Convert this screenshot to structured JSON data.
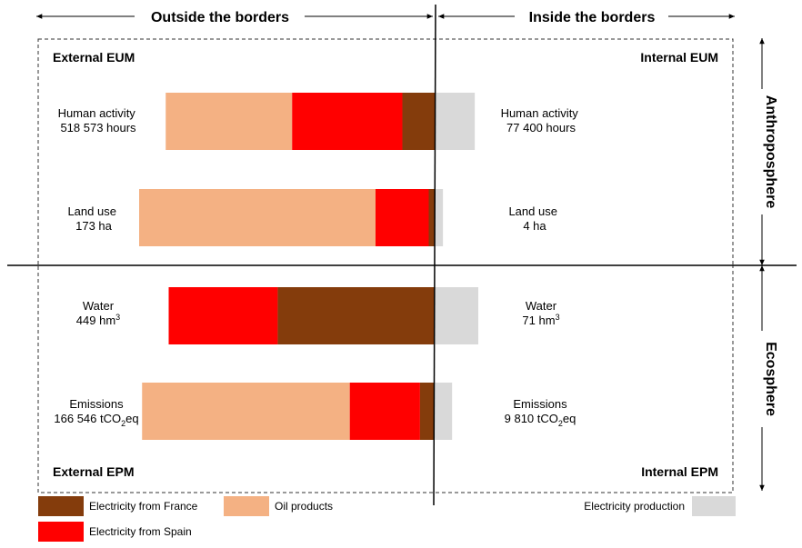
{
  "headers": {
    "outside": "Outside the borders",
    "inside": "Inside the borders",
    "anthroposphere": "Anthroposphere",
    "ecosphere": "Ecosphere"
  },
  "corners": {
    "external_eum": "External EUM",
    "internal_eum": "Internal EUM",
    "external_epm": "External EPM",
    "internal_epm": "Internal EPM"
  },
  "colors": {
    "oil": "#F4B183",
    "spain": "#FF0000",
    "france": "#843C0C",
    "production": "#D9D9D9"
  },
  "rows": [
    {
      "key": "human",
      "left_label": [
        "Human activity",
        "518 573 hours"
      ],
      "right_label": [
        "Human activity",
        "77 400 hours"
      ],
      "external": {
        "oil": 0.47,
        "spain": 0.41,
        "france": 0.13
      },
      "external_total": 518573,
      "internal_total": 77400
    },
    {
      "key": "land",
      "left_label": [
        "Land use",
        "173 ha"
      ],
      "right_label": [
        "Land use",
        "4 ha"
      ],
      "external": {
        "oil": 0.8,
        "spain": 0.18,
        "france": 0.02
      },
      "external_total": 173,
      "internal_total": 4
    },
    {
      "key": "water",
      "left_label": [
        "Water",
        "449 hm"
      ],
      "left_sup": "3",
      "right_label": [
        "Water",
        "71 hm"
      ],
      "right_sup": "3",
      "external": {
        "oil": 0.0,
        "spain": 0.41,
        "france": 0.59
      },
      "external_total": 449,
      "internal_total": 71
    },
    {
      "key": "emissions",
      "left_label": [
        "Emissions",
        "166 546 tCO"
      ],
      "left_sub": "2",
      "left_tail": "eq",
      "right_label": [
        "Emissions",
        "9 810 tCO"
      ],
      "right_sub": "2",
      "right_tail": "eq",
      "external": {
        "oil": 0.71,
        "spain": 0.24,
        "france": 0.05
      },
      "external_total": 166546,
      "internal_total": 9810
    }
  ],
  "legend": [
    {
      "key": "france",
      "label": "Electricity from France"
    },
    {
      "key": "oil",
      "label": "Oil products"
    },
    {
      "key": "spain",
      "label": "Electricity from Spain"
    },
    {
      "key": "production",
      "label": "Electricity production"
    }
  ]
}
